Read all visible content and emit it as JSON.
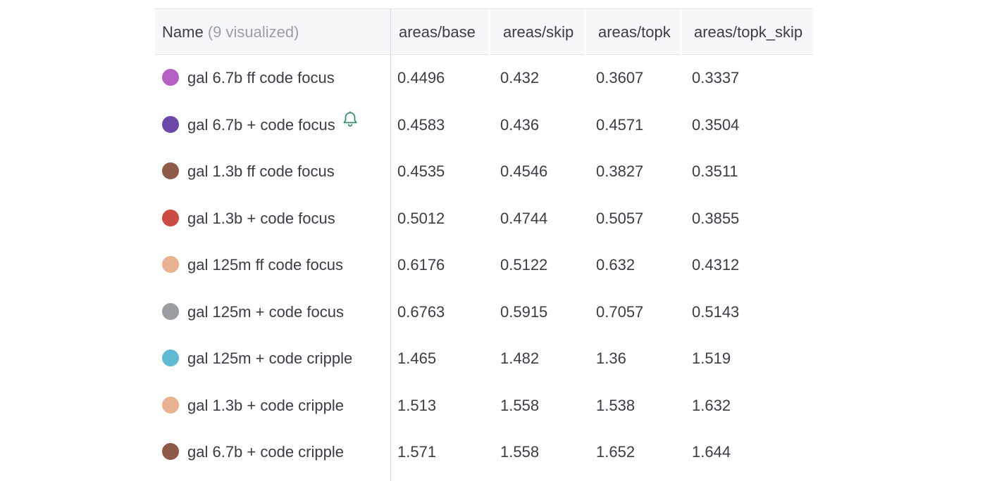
{
  "header": {
    "name_label": "Name",
    "visualized_note": "(9 visualized)",
    "columns": [
      "areas/base",
      "areas/skip",
      "areas/topk",
      "areas/topk_skip"
    ]
  },
  "runs": [
    {
      "name": "gal 6.7b ff code focus",
      "color": "#b55fc4",
      "values": [
        "0.4496",
        "0.432",
        "0.3607",
        "0.3337"
      ],
      "alert": false
    },
    {
      "name": "gal 6.7b + code focus",
      "color": "#6c48a9",
      "values": [
        "0.4583",
        "0.436",
        "0.4571",
        "0.3504"
      ],
      "alert": true
    },
    {
      "name": "gal 1.3b ff code focus",
      "color": "#8d5b48",
      "values": [
        "0.4535",
        "0.4546",
        "0.3827",
        "0.3511"
      ],
      "alert": false
    },
    {
      "name": "gal 1.3b + code focus",
      "color": "#cc4b42",
      "values": [
        "0.5012",
        "0.4744",
        "0.5057",
        "0.3855"
      ],
      "alert": false
    },
    {
      "name": "gal 125m ff code focus",
      "color": "#e8b393",
      "values": [
        "0.6176",
        "0.5122",
        "0.632",
        "0.4312"
      ],
      "alert": false
    },
    {
      "name": "gal 125m + code focus",
      "color": "#9a9da1",
      "values": [
        "0.6763",
        "0.5915",
        "0.7057",
        "0.5143"
      ],
      "alert": false
    },
    {
      "name": "gal 125m + code cripple",
      "color": "#5fb9d2",
      "values": [
        "1.465",
        "1.482",
        "1.36",
        "1.519"
      ],
      "alert": false
    },
    {
      "name": "gal 1.3b + code cripple",
      "color": "#e8b393",
      "values": [
        "1.513",
        "1.558",
        "1.538",
        "1.632"
      ],
      "alert": false
    },
    {
      "name": "gal 6.7b + code cripple",
      "color": "#8d5b48",
      "values": [
        "1.571",
        "1.558",
        "1.652",
        "1.644"
      ],
      "alert": false
    }
  ],
  "icons": {
    "alert": "bell-icon"
  },
  "colors": {
    "alert_icon": "#3b8a6e"
  }
}
